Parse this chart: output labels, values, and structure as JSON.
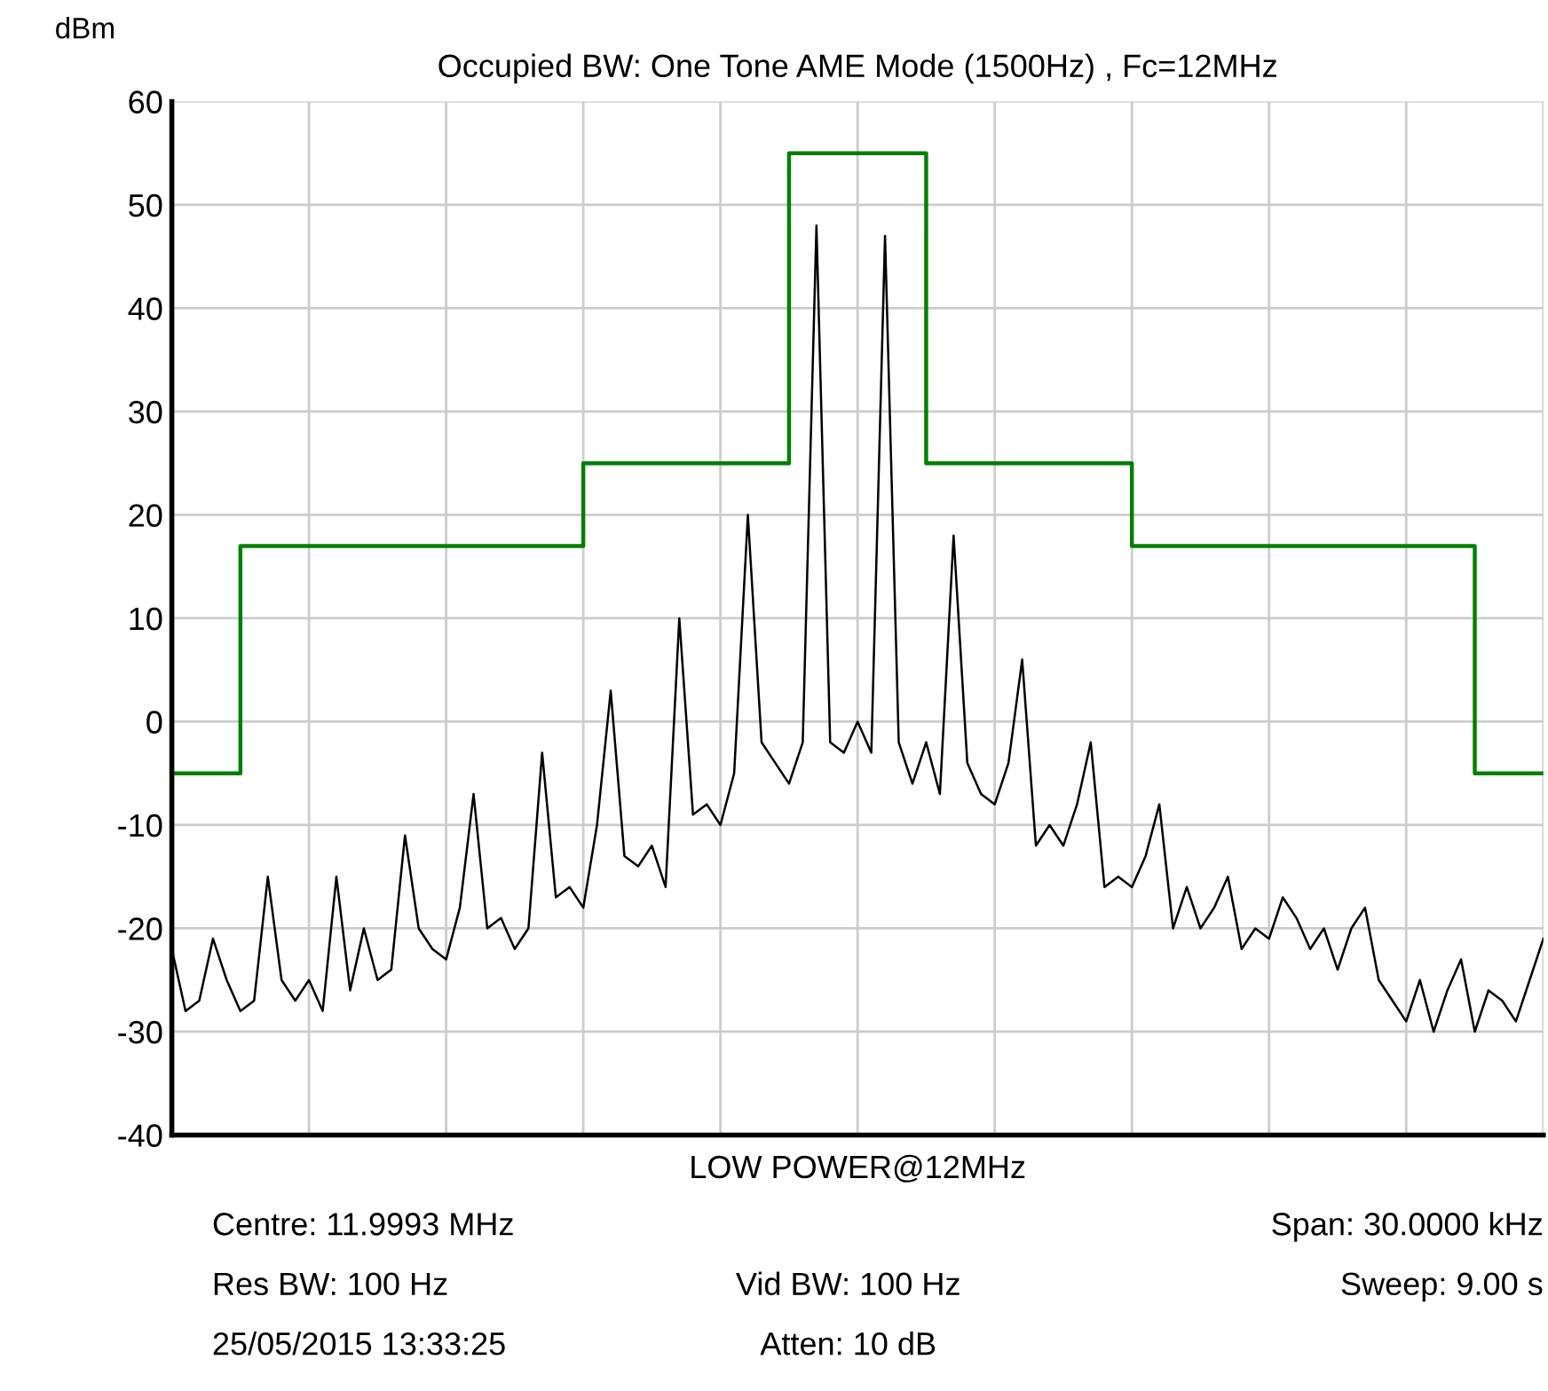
{
  "chart_data": {
    "type": "line",
    "title": "Occupied BW: One Tone AME Mode (1500Hz) , Fc=12MHz",
    "xlabel": "LOW POWER@12MHz",
    "ylabel": "dBm",
    "categories": [
      null,
      null,
      null,
      null,
      null,
      null,
      null,
      null,
      null,
      null,
      null,
      null,
      null,
      null,
      null,
      null,
      null,
      null,
      null,
      null,
      null,
      null,
      null,
      null,
      null,
      null,
      null,
      null,
      null,
      null,
      null,
      null,
      null,
      null,
      null,
      null,
      null,
      null,
      null,
      null,
      null,
      null,
      null,
      null,
      null,
      null,
      null,
      null,
      null,
      null,
      null,
      null,
      null,
      null,
      null,
      null,
      null,
      null,
      null,
      null,
      null,
      null,
      null,
      null,
      null,
      null,
      null,
      null,
      null,
      null,
      null,
      null,
      null,
      null,
      null,
      null,
      null,
      null,
      null,
      null,
      null,
      null,
      null,
      null,
      null,
      null,
      null,
      null,
      null,
      null,
      null,
      null,
      null,
      null,
      null,
      null,
      null,
      null,
      null,
      null,
      null
    ],
    "series": [
      {
        "color": "#000000",
        "values": [
          -22,
          -28,
          -27,
          -21,
          -25,
          -28,
          -27,
          -15,
          -25,
          -27,
          -25,
          -28,
          -15,
          -26,
          -20,
          -25,
          -24,
          -11,
          -20,
          -22,
          -23,
          -18,
          -7,
          -20,
          -19,
          -22,
          -20,
          -3,
          -17,
          -16,
          -18,
          -10,
          3,
          -13,
          -14,
          -12,
          -16,
          10,
          -9,
          -8,
          -10,
          -5,
          20,
          -2,
          -4,
          -6,
          -2,
          48,
          -2,
          -3,
          0,
          -3,
          47,
          -2,
          -6,
          -2,
          -7,
          18,
          -4,
          -7,
          -8,
          -4,
          6,
          -12,
          -10,
          -12,
          -8,
          -2,
          -16,
          -15,
          -16,
          -13,
          -8,
          -20,
          -16,
          -20,
          -18,
          -15,
          -22,
          -20,
          -21,
          -17,
          -19,
          -22,
          -20,
          -24,
          -20,
          -18,
          -25,
          -27,
          -29,
          -25,
          -30,
          -26,
          -23,
          -30,
          -26,
          -27,
          -29,
          -25,
          -21
        ]
      },
      {
        "type": "step",
        "color": "#008000",
        "values": [
          -5,
          -5,
          -5,
          -5,
          -5,
          17,
          17,
          17,
          17,
          17,
          17,
          17,
          17,
          17,
          17,
          17,
          17,
          17,
          17,
          17,
          17,
          17,
          17,
          17,
          17,
          17,
          17,
          17,
          17,
          17,
          25,
          25,
          25,
          25,
          25,
          25,
          25,
          25,
          25,
          25,
          25,
          25,
          25,
          25,
          25,
          55,
          55,
          55,
          55,
          55,
          55,
          55,
          55,
          55,
          55,
          25,
          25,
          25,
          25,
          25,
          25,
          25,
          25,
          25,
          25,
          25,
          25,
          25,
          25,
          25,
          17,
          17,
          17,
          17,
          17,
          17,
          17,
          17,
          17,
          17,
          17,
          17,
          17,
          17,
          17,
          17,
          17,
          17,
          17,
          17,
          17,
          17,
          17,
          17,
          17,
          -5,
          -5,
          -5,
          -5,
          -5,
          -5
        ]
      }
    ],
    "ylim": [
      -40,
      60
    ],
    "yticks": [
      -40,
      -30,
      -20,
      -10,
      0,
      10,
      20,
      30,
      40,
      50,
      60
    ],
    "grid": true,
    "tick_labels": "y",
    "annotations": [
      "Centre: 11.9993 MHz",
      "Span: 30.0000 kHz",
      "Res BW: 100 Hz",
      "Vid BW: 100 Hz",
      "Sweep: 9.00 s",
      "25/05/2015 13:33:25",
      "Atten: 10 dB"
    ]
  }
}
